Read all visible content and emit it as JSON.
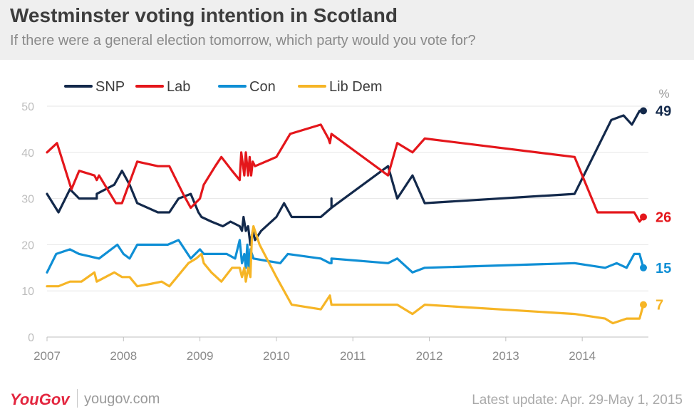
{
  "header": {
    "title": "Westminster voting intention in Scotland",
    "subtitle": "If there were a general election tomorrow, which party would you vote for?"
  },
  "footer": {
    "brand": "YouGov",
    "url": "yougov.com",
    "update": "Latest update: Apr. 29-May 1, 2015"
  },
  "chart_data": {
    "type": "line",
    "ylabel": "%",
    "xlim": [
      2007,
      2014.8
    ],
    "ylim": [
      0,
      50
    ],
    "y_ticks": [
      0,
      10,
      20,
      30,
      40,
      50
    ],
    "x_ticks": [
      "2007",
      "2008",
      "2009",
      "2010",
      "2011",
      "2012",
      "2013",
      "2014"
    ],
    "grid": true,
    "legend_position": "top-left",
    "end_labels": [
      49,
      26,
      15,
      7
    ],
    "series": [
      {
        "name": "SNP",
        "color": "#13294b",
        "points": [
          [
            2007.0,
            31
          ],
          [
            2007.15,
            27
          ],
          [
            2007.3,
            32
          ],
          [
            2007.42,
            30
          ],
          [
            2007.65,
            30
          ],
          [
            2007.65,
            31
          ],
          [
            2007.88,
            33
          ],
          [
            2007.98,
            36
          ],
          [
            2008.08,
            33
          ],
          [
            2008.18,
            29
          ],
          [
            2008.45,
            27
          ],
          [
            2008.6,
            27
          ],
          [
            2008.72,
            30
          ],
          [
            2008.88,
            31
          ],
          [
            2008.98,
            27
          ],
          [
            2009.02,
            26
          ],
          [
            2009.15,
            25
          ],
          [
            2009.3,
            24
          ],
          [
            2009.4,
            25
          ],
          [
            2009.52,
            24
          ],
          [
            2009.55,
            23
          ],
          [
            2009.57,
            26
          ],
          [
            2009.6,
            23
          ],
          [
            2009.63,
            24
          ],
          [
            2009.66,
            20
          ],
          [
            2009.69,
            23
          ],
          [
            2009.72,
            21
          ],
          [
            2009.8,
            23
          ],
          [
            2010.0,
            26
          ],
          [
            2010.1,
            29
          ],
          [
            2010.2,
            26
          ],
          [
            2010.45,
            26
          ],
          [
            2010.58,
            26
          ],
          [
            2010.72,
            28
          ],
          [
            2010.72,
            30
          ],
          [
            2010.72,
            28
          ],
          [
            2011.46,
            37
          ],
          [
            2011.58,
            30
          ],
          [
            2011.78,
            35
          ],
          [
            2011.94,
            29
          ],
          [
            2013.9,
            31
          ],
          [
            2014.38,
            47
          ],
          [
            2014.54,
            48
          ],
          [
            2014.65,
            46
          ],
          [
            2014.75,
            49
          ],
          [
            2014.8,
            49
          ]
        ]
      },
      {
        "name": "Lab",
        "color": "#e4161b",
        "points": [
          [
            2007.0,
            40
          ],
          [
            2007.13,
            42
          ],
          [
            2007.32,
            32
          ],
          [
            2007.42,
            36
          ],
          [
            2007.62,
            35
          ],
          [
            2007.65,
            34
          ],
          [
            2007.68,
            35
          ],
          [
            2007.9,
            29
          ],
          [
            2007.98,
            29
          ],
          [
            2008.18,
            38
          ],
          [
            2008.45,
            37
          ],
          [
            2008.6,
            37
          ],
          [
            2008.78,
            31
          ],
          [
            2008.88,
            28
          ],
          [
            2009.0,
            30
          ],
          [
            2009.05,
            33
          ],
          [
            2009.2,
            37
          ],
          [
            2009.28,
            39
          ],
          [
            2009.42,
            36
          ],
          [
            2009.52,
            34
          ],
          [
            2009.54,
            40
          ],
          [
            2009.58,
            35
          ],
          [
            2009.6,
            40
          ],
          [
            2009.63,
            35
          ],
          [
            2009.65,
            39
          ],
          [
            2009.67,
            35
          ],
          [
            2009.69,
            38
          ],
          [
            2009.72,
            37
          ],
          [
            2010.0,
            39
          ],
          [
            2010.18,
            44
          ],
          [
            2010.58,
            46
          ],
          [
            2010.68,
            43
          ],
          [
            2010.7,
            42
          ],
          [
            2010.72,
            44
          ],
          [
            2011.46,
            35
          ],
          [
            2011.58,
            42
          ],
          [
            2011.78,
            40
          ],
          [
            2011.94,
            43
          ],
          [
            2013.9,
            39
          ],
          [
            2014.2,
            27
          ],
          [
            2014.58,
            27
          ],
          [
            2014.68,
            27
          ],
          [
            2014.75,
            25
          ],
          [
            2014.8,
            26
          ]
        ]
      },
      {
        "name": "Con",
        "color": "#0f8fd5",
        "points": [
          [
            2007.0,
            14
          ],
          [
            2007.12,
            18
          ],
          [
            2007.3,
            19
          ],
          [
            2007.42,
            18
          ],
          [
            2007.68,
            17
          ],
          [
            2007.92,
            20
          ],
          [
            2008.0,
            18
          ],
          [
            2008.08,
            17
          ],
          [
            2008.18,
            20
          ],
          [
            2008.45,
            20
          ],
          [
            2008.58,
            20
          ],
          [
            2008.72,
            21
          ],
          [
            2008.88,
            17
          ],
          [
            2009.0,
            19
          ],
          [
            2009.05,
            18
          ],
          [
            2009.2,
            18
          ],
          [
            2009.35,
            18
          ],
          [
            2009.46,
            17
          ],
          [
            2009.52,
            21
          ],
          [
            2009.55,
            16
          ],
          [
            2009.58,
            18
          ],
          [
            2009.6,
            15
          ],
          [
            2009.62,
            20
          ],
          [
            2009.64,
            14
          ],
          [
            2009.66,
            19
          ],
          [
            2009.7,
            17
          ],
          [
            2010.05,
            16
          ],
          [
            2010.15,
            18
          ],
          [
            2010.58,
            17
          ],
          [
            2010.7,
            16
          ],
          [
            2010.72,
            16
          ],
          [
            2010.72,
            17
          ],
          [
            2011.46,
            16
          ],
          [
            2011.58,
            17
          ],
          [
            2011.78,
            14
          ],
          [
            2011.94,
            15
          ],
          [
            2013.9,
            16
          ],
          [
            2014.3,
            15
          ],
          [
            2014.45,
            16
          ],
          [
            2014.58,
            15
          ],
          [
            2014.68,
            18
          ],
          [
            2014.75,
            18
          ],
          [
            2014.8,
            15
          ]
        ]
      },
      {
        "name": "Lib Dem",
        "color": "#f6b526",
        "points": [
          [
            2007.0,
            11
          ],
          [
            2007.15,
            11
          ],
          [
            2007.3,
            12
          ],
          [
            2007.45,
            12
          ],
          [
            2007.62,
            14
          ],
          [
            2007.65,
            12
          ],
          [
            2007.88,
            14
          ],
          [
            2007.98,
            13
          ],
          [
            2008.08,
            13
          ],
          [
            2008.18,
            11
          ],
          [
            2008.35,
            11.5
          ],
          [
            2008.5,
            12
          ],
          [
            2008.6,
            11
          ],
          [
            2008.7,
            13
          ],
          [
            2008.85,
            16
          ],
          [
            2008.95,
            17
          ],
          [
            2009.02,
            18
          ],
          [
            2009.05,
            16
          ],
          [
            2009.15,
            14
          ],
          [
            2009.28,
            12
          ],
          [
            2009.42,
            15
          ],
          [
            2009.52,
            15
          ],
          [
            2009.55,
            13
          ],
          [
            2009.58,
            15
          ],
          [
            2009.6,
            12
          ],
          [
            2009.63,
            15
          ],
          [
            2009.66,
            13
          ],
          [
            2009.68,
            22
          ],
          [
            2009.7,
            24
          ],
          [
            2009.78,
            20
          ],
          [
            2010.0,
            13
          ],
          [
            2010.2,
            7
          ],
          [
            2010.58,
            6
          ],
          [
            2010.7,
            9
          ],
          [
            2010.72,
            7
          ],
          [
            2011.46,
            7
          ],
          [
            2011.58,
            7
          ],
          [
            2011.78,
            5
          ],
          [
            2011.94,
            7
          ],
          [
            2013.9,
            5
          ],
          [
            2014.3,
            4
          ],
          [
            2014.4,
            3
          ],
          [
            2014.58,
            4
          ],
          [
            2014.68,
            4
          ],
          [
            2014.75,
            4
          ],
          [
            2014.8,
            7
          ]
        ]
      }
    ]
  }
}
